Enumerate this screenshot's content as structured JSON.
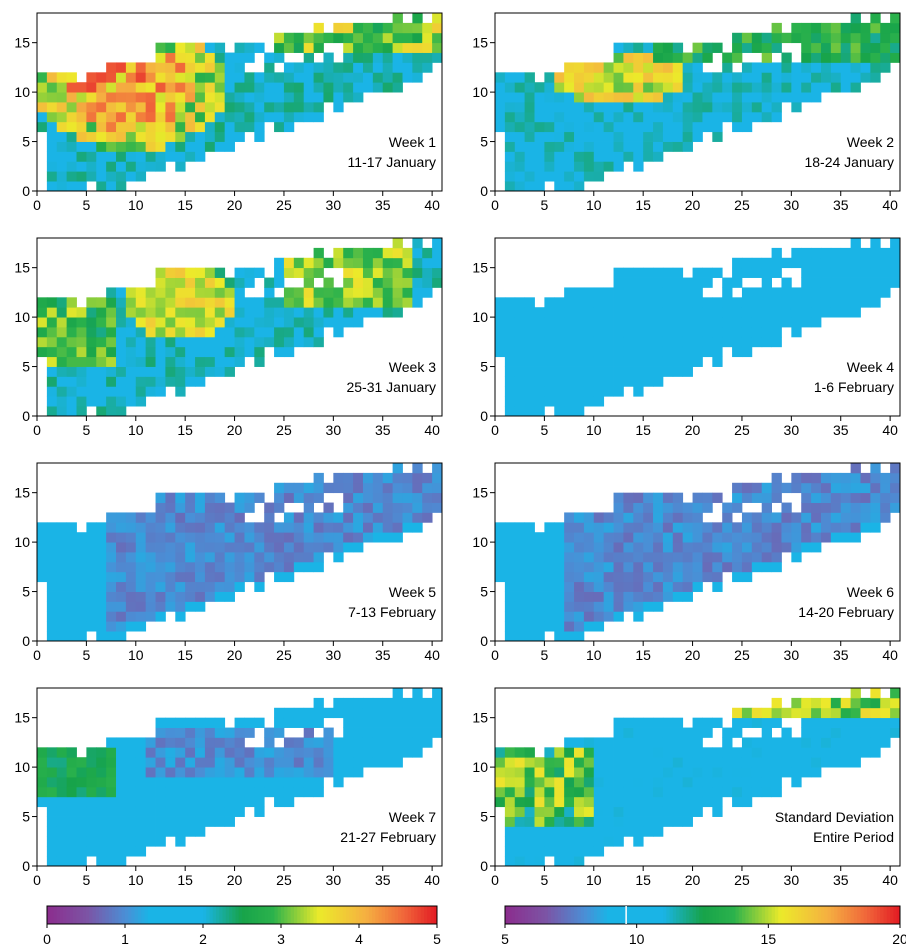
{
  "chart_data": {
    "type": "heatmap",
    "panels": [
      {
        "label_line1": "Week 1",
        "label_line2": "11-17 January",
        "scale": "weekly",
        "profile": "w1"
      },
      {
        "label_line1": "Week 2",
        "label_line2": "18-24 January",
        "scale": "weekly",
        "profile": "w2"
      },
      {
        "label_line1": "Week 3",
        "label_line2": "25-31 January",
        "scale": "weekly",
        "profile": "w3"
      },
      {
        "label_line1": "Week 4",
        "label_line2": "1-6 February",
        "scale": "weekly",
        "profile": "w4"
      },
      {
        "label_line1": "Week 5",
        "label_line2": "7-13 February",
        "scale": "weekly",
        "profile": "w5"
      },
      {
        "label_line1": "Week 6",
        "label_line2": "14-20 February",
        "scale": "weekly",
        "profile": "w6"
      },
      {
        "label_line1": "Week 7",
        "label_line2": "21-27 February",
        "scale": "weekly",
        "profile": "w7"
      },
      {
        "label_line1": "Standard Deviation",
        "label_line2": "Entire Period",
        "scale": "std",
        "profile": "sd"
      }
    ],
    "x_ticks": [
      0,
      5,
      10,
      15,
      20,
      25,
      30,
      35,
      40
    ],
    "y_ticks": [
      0,
      5,
      10,
      15
    ],
    "xlim": [
      0,
      41
    ],
    "ylim": [
      0,
      18
    ],
    "grid": false,
    "colorbars": [
      {
        "for": "weekly",
        "min": 0,
        "max": 5,
        "ticks": [
          0,
          1,
          2,
          3,
          4,
          5
        ]
      },
      {
        "for": "std",
        "min": 5,
        "max": 20,
        "ticks": [
          5,
          10,
          15,
          20
        ],
        "marker": 9.6
      }
    ],
    "colormap": [
      [
        0.0,
        "#8b2e8e"
      ],
      [
        0.1,
        "#7c54a5"
      ],
      [
        0.2,
        "#4a8fd6"
      ],
      [
        0.26,
        "#1ab4e6"
      ],
      [
        0.4,
        "#1ab4e6"
      ],
      [
        0.5,
        "#17a34a"
      ],
      [
        0.58,
        "#2bb24c"
      ],
      [
        0.7,
        "#ecea2a"
      ],
      [
        0.82,
        "#f5b041"
      ],
      [
        0.92,
        "#f0653a"
      ],
      [
        1.0,
        "#e31e24"
      ]
    ]
  }
}
